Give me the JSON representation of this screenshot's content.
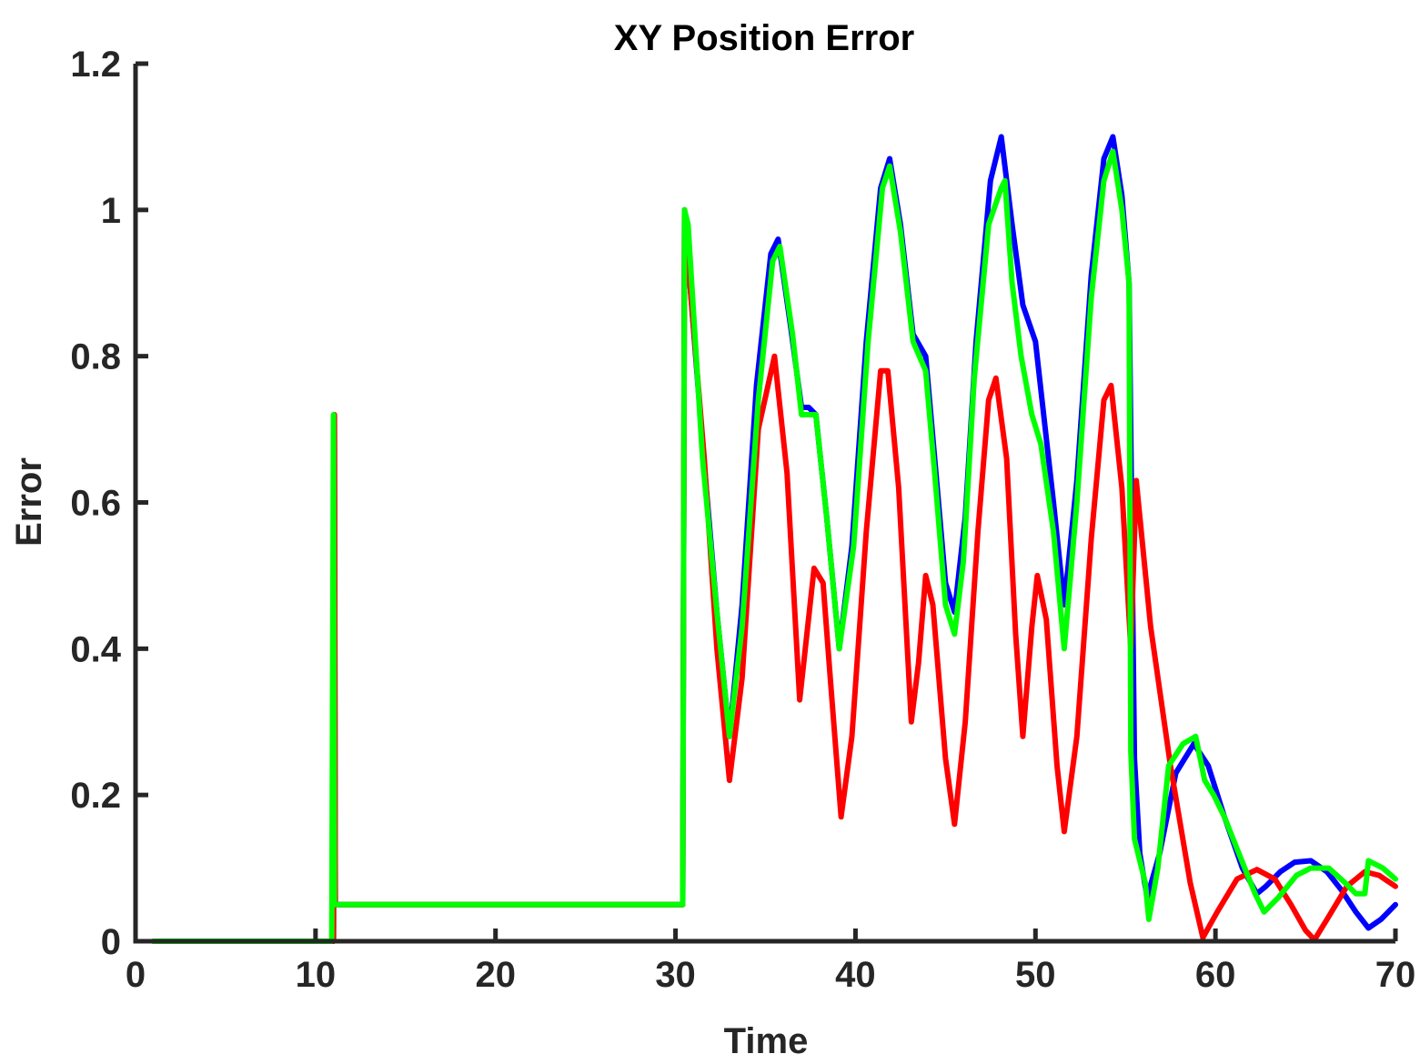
{
  "chart_data": {
    "type": "line",
    "title": "XY Position Error",
    "xlabel": "Time",
    "ylabel": "Error",
    "xlim": [
      0,
      70
    ],
    "ylim": [
      0,
      1.2
    ],
    "xticks": [
      0,
      10,
      20,
      30,
      40,
      50,
      60,
      70
    ],
    "xtick_labels": [
      "0",
      "10",
      "20",
      "30",
      "40",
      "50",
      "60",
      "70"
    ],
    "yticks": [
      0,
      0.2,
      0.4,
      0.6,
      0.8,
      1,
      1.2
    ],
    "ytick_labels": [
      "0",
      "0.2",
      "0.4",
      "0.6",
      "0.8",
      "1",
      "1.2"
    ],
    "grid": false,
    "legend": "none",
    "series": [
      {
        "color": "#0000ff",
        "x": [
          1,
          11,
          11.05,
          11.1,
          30.4,
          30.5,
          30.8,
          31.5,
          32.3,
          33.0,
          33.7,
          34.5,
          35.3,
          35.7,
          36.4,
          37.0,
          37.4,
          37.8,
          38.4,
          39.1,
          39.8,
          40.6,
          41.4,
          41.9,
          42.5,
          43.2,
          43.9,
          44.4,
          45.0,
          45.5,
          46.1,
          46.7,
          47.5,
          48.1,
          48.7,
          49.3,
          50.0,
          51.0,
          51.6,
          52.3,
          53.1,
          53.8,
          54.3,
          54.8,
          55.2,
          55.5,
          55.8,
          56.2,
          56.9,
          57.8,
          58.8,
          59.6,
          60.5,
          61.5,
          62.3,
          62.8,
          63.6,
          64.4,
          65.3,
          66.2,
          67.0,
          67.8,
          68.5,
          69.2,
          70
        ],
        "y": [
          0,
          0,
          0.72,
          0.05,
          0.05,
          1.0,
          0.9,
          0.68,
          0.45,
          0.28,
          0.46,
          0.76,
          0.94,
          0.96,
          0.84,
          0.73,
          0.73,
          0.72,
          0.58,
          0.4,
          0.54,
          0.82,
          1.03,
          1.07,
          0.98,
          0.83,
          0.8,
          0.66,
          0.49,
          0.45,
          0.58,
          0.82,
          1.04,
          1.1,
          0.98,
          0.87,
          0.82,
          0.6,
          0.46,
          0.63,
          0.91,
          1.07,
          1.1,
          1.02,
          0.9,
          0.25,
          0.12,
          0.06,
          0.12,
          0.23,
          0.27,
          0.24,
          0.17,
          0.1,
          0.065,
          0.075,
          0.095,
          0.108,
          0.11,
          0.095,
          0.07,
          0.04,
          0.018,
          0.03,
          0.05
        ]
      },
      {
        "color": "#ff0000",
        "x": [
          1,
          11,
          11.05,
          11.1,
          30.4,
          30.5,
          30.8,
          31.6,
          32.3,
          33.0,
          33.7,
          34.6,
          35.5,
          36.2,
          36.9,
          37.3,
          37.7,
          38.2,
          38.6,
          39.2,
          39.8,
          40.6,
          41.4,
          41.8,
          42.4,
          43.1,
          43.5,
          43.9,
          44.3,
          45.0,
          45.5,
          46.1,
          46.8,
          47.4,
          47.8,
          48.4,
          48.9,
          49.3,
          49.8,
          50.1,
          50.6,
          51.2,
          51.6,
          52.3,
          53.1,
          53.8,
          54.2,
          54.8,
          55.3,
          55.6,
          56.4,
          57.5,
          58.6,
          59.3,
          60.1,
          61.2,
          62.3,
          63.3,
          64.2,
          65.0,
          65.5,
          66.2,
          67.3,
          68.3,
          69.1,
          70
        ],
        "y": [
          0,
          0,
          0.72,
          0.05,
          0.05,
          1.0,
          0.9,
          0.66,
          0.4,
          0.22,
          0.36,
          0.7,
          0.8,
          0.64,
          0.33,
          0.42,
          0.51,
          0.49,
          0.36,
          0.17,
          0.28,
          0.56,
          0.78,
          0.78,
          0.62,
          0.3,
          0.38,
          0.5,
          0.46,
          0.25,
          0.16,
          0.3,
          0.56,
          0.74,
          0.77,
          0.66,
          0.42,
          0.28,
          0.43,
          0.5,
          0.44,
          0.24,
          0.15,
          0.28,
          0.55,
          0.74,
          0.76,
          0.62,
          0.4,
          0.63,
          0.43,
          0.24,
          0.08,
          0.005,
          0.04,
          0.085,
          0.098,
          0.085,
          0.05,
          0.015,
          0.002,
          0.03,
          0.075,
          0.095,
          0.09,
          0.075
        ]
      },
      {
        "color": "#00ff00",
        "x": [
          1,
          10.9,
          11.0,
          11.05,
          11.1,
          30.4,
          30.5,
          30.7,
          31.5,
          32.3,
          33.0,
          33.7,
          34.6,
          35.4,
          35.8,
          36.5,
          37.0,
          37.4,
          37.8,
          38.4,
          39.1,
          39.9,
          40.7,
          41.5,
          41.9,
          42.5,
          43.2,
          43.9,
          44.4,
          45.0,
          45.5,
          46.0,
          46.6,
          47.4,
          48.1,
          48.3,
          48.7,
          49.2,
          49.8,
          50.3,
          51.0,
          51.6,
          52.3,
          53.1,
          53.8,
          54.3,
          54.8,
          55.2,
          55.3,
          55.5,
          55.8,
          56.1,
          56.3,
          56.8,
          57.4,
          58.2,
          58.9,
          59.4,
          59.9,
          60.5,
          61.3,
          62.2,
          62.7,
          63.5,
          64.5,
          65.3,
          66.3,
          67.2,
          67.8,
          68.3,
          68.5,
          69.3,
          70
        ],
        "y": [
          0,
          0,
          0.72,
          0.05,
          0.05,
          0.05,
          1.0,
          0.98,
          0.66,
          0.45,
          0.28,
          0.43,
          0.74,
          0.93,
          0.95,
          0.83,
          0.72,
          0.72,
          0.72,
          0.58,
          0.4,
          0.54,
          0.82,
          1.03,
          1.06,
          0.97,
          0.82,
          0.78,
          0.64,
          0.46,
          0.42,
          0.52,
          0.77,
          0.98,
          1.03,
          1.04,
          0.9,
          0.8,
          0.72,
          0.68,
          0.56,
          0.4,
          0.6,
          0.88,
          1.04,
          1.08,
          1.0,
          0.9,
          0.26,
          0.14,
          0.11,
          0.08,
          0.03,
          0.1,
          0.24,
          0.27,
          0.28,
          0.22,
          0.2,
          0.17,
          0.12,
          0.065,
          0.04,
          0.06,
          0.09,
          0.1,
          0.1,
          0.08,
          0.065,
          0.065,
          0.11,
          0.1,
          0.085
        ]
      }
    ]
  }
}
